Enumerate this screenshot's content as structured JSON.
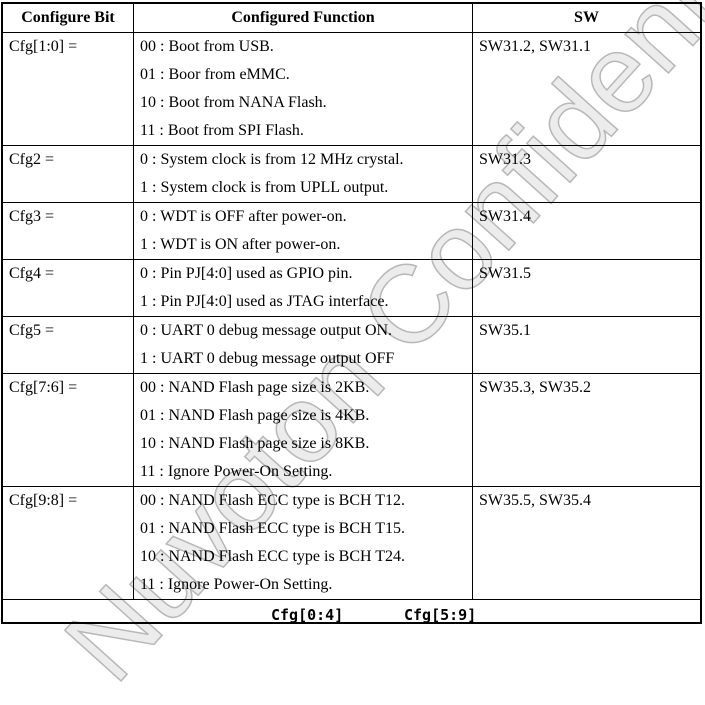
{
  "headers": [
    "Configure Bit",
    "Configured Function",
    "SW"
  ],
  "rows": [
    {
      "bit": "Cfg[1:0] =",
      "functions": [
        "00 : Boot from USB.",
        "01 : Boor from eMMC.",
        "10 : Boot from NANA Flash.",
        "11 : Boot from SPI Flash."
      ],
      "sw": "SW31.2, SW31.1"
    },
    {
      "bit": "Cfg2 =",
      "functions": [
        "0 : System clock is from 12 MHz crystal.",
        "1 : System clock is from UPLL output."
      ],
      "sw": "SW31.3"
    },
    {
      "bit": "Cfg3 =",
      "functions": [
        "0 : WDT is OFF after power-on.",
        "1 : WDT is ON after power-on."
      ],
      "sw": "SW31.4"
    },
    {
      "bit": "Cfg4 =",
      "functions": [
        "0 : Pin PJ[4:0] used as GPIO pin.",
        "1 : Pin PJ[4:0] used as JTAG interface."
      ],
      "sw": "SW31.5"
    },
    {
      "bit": "Cfg5 =",
      "functions": [
        "0 : UART 0 debug message output ON.",
        "1 : UART 0 debug message output OFF"
      ],
      "sw": "SW35.1"
    },
    {
      "bit": "Cfg[7:6] =",
      "functions": [
        "00 : NAND Flash page size is 2KB.",
        "01 : NAND Flash page size is 4KB.",
        "10 : NAND Flash page size is 8KB.",
        "11 : Ignore Power-On Setting."
      ],
      "sw": "SW35.3, SW35.2"
    },
    {
      "bit": "Cfg[9:8] =",
      "functions": [
        "00 : NAND Flash ECC type is BCH T12.",
        "01 : NAND Flash ECC type is BCH T15.",
        "10 : NAND Flash ECC type is BCH T24.",
        "11 : Ignore Power-On Setting."
      ],
      "sw": "SW35.5, SW35.4"
    }
  ],
  "figure_labels": [
    "Cfg[0:4]",
    "Cfg[5:9]"
  ],
  "watermark": "Nuvoton Confidential"
}
